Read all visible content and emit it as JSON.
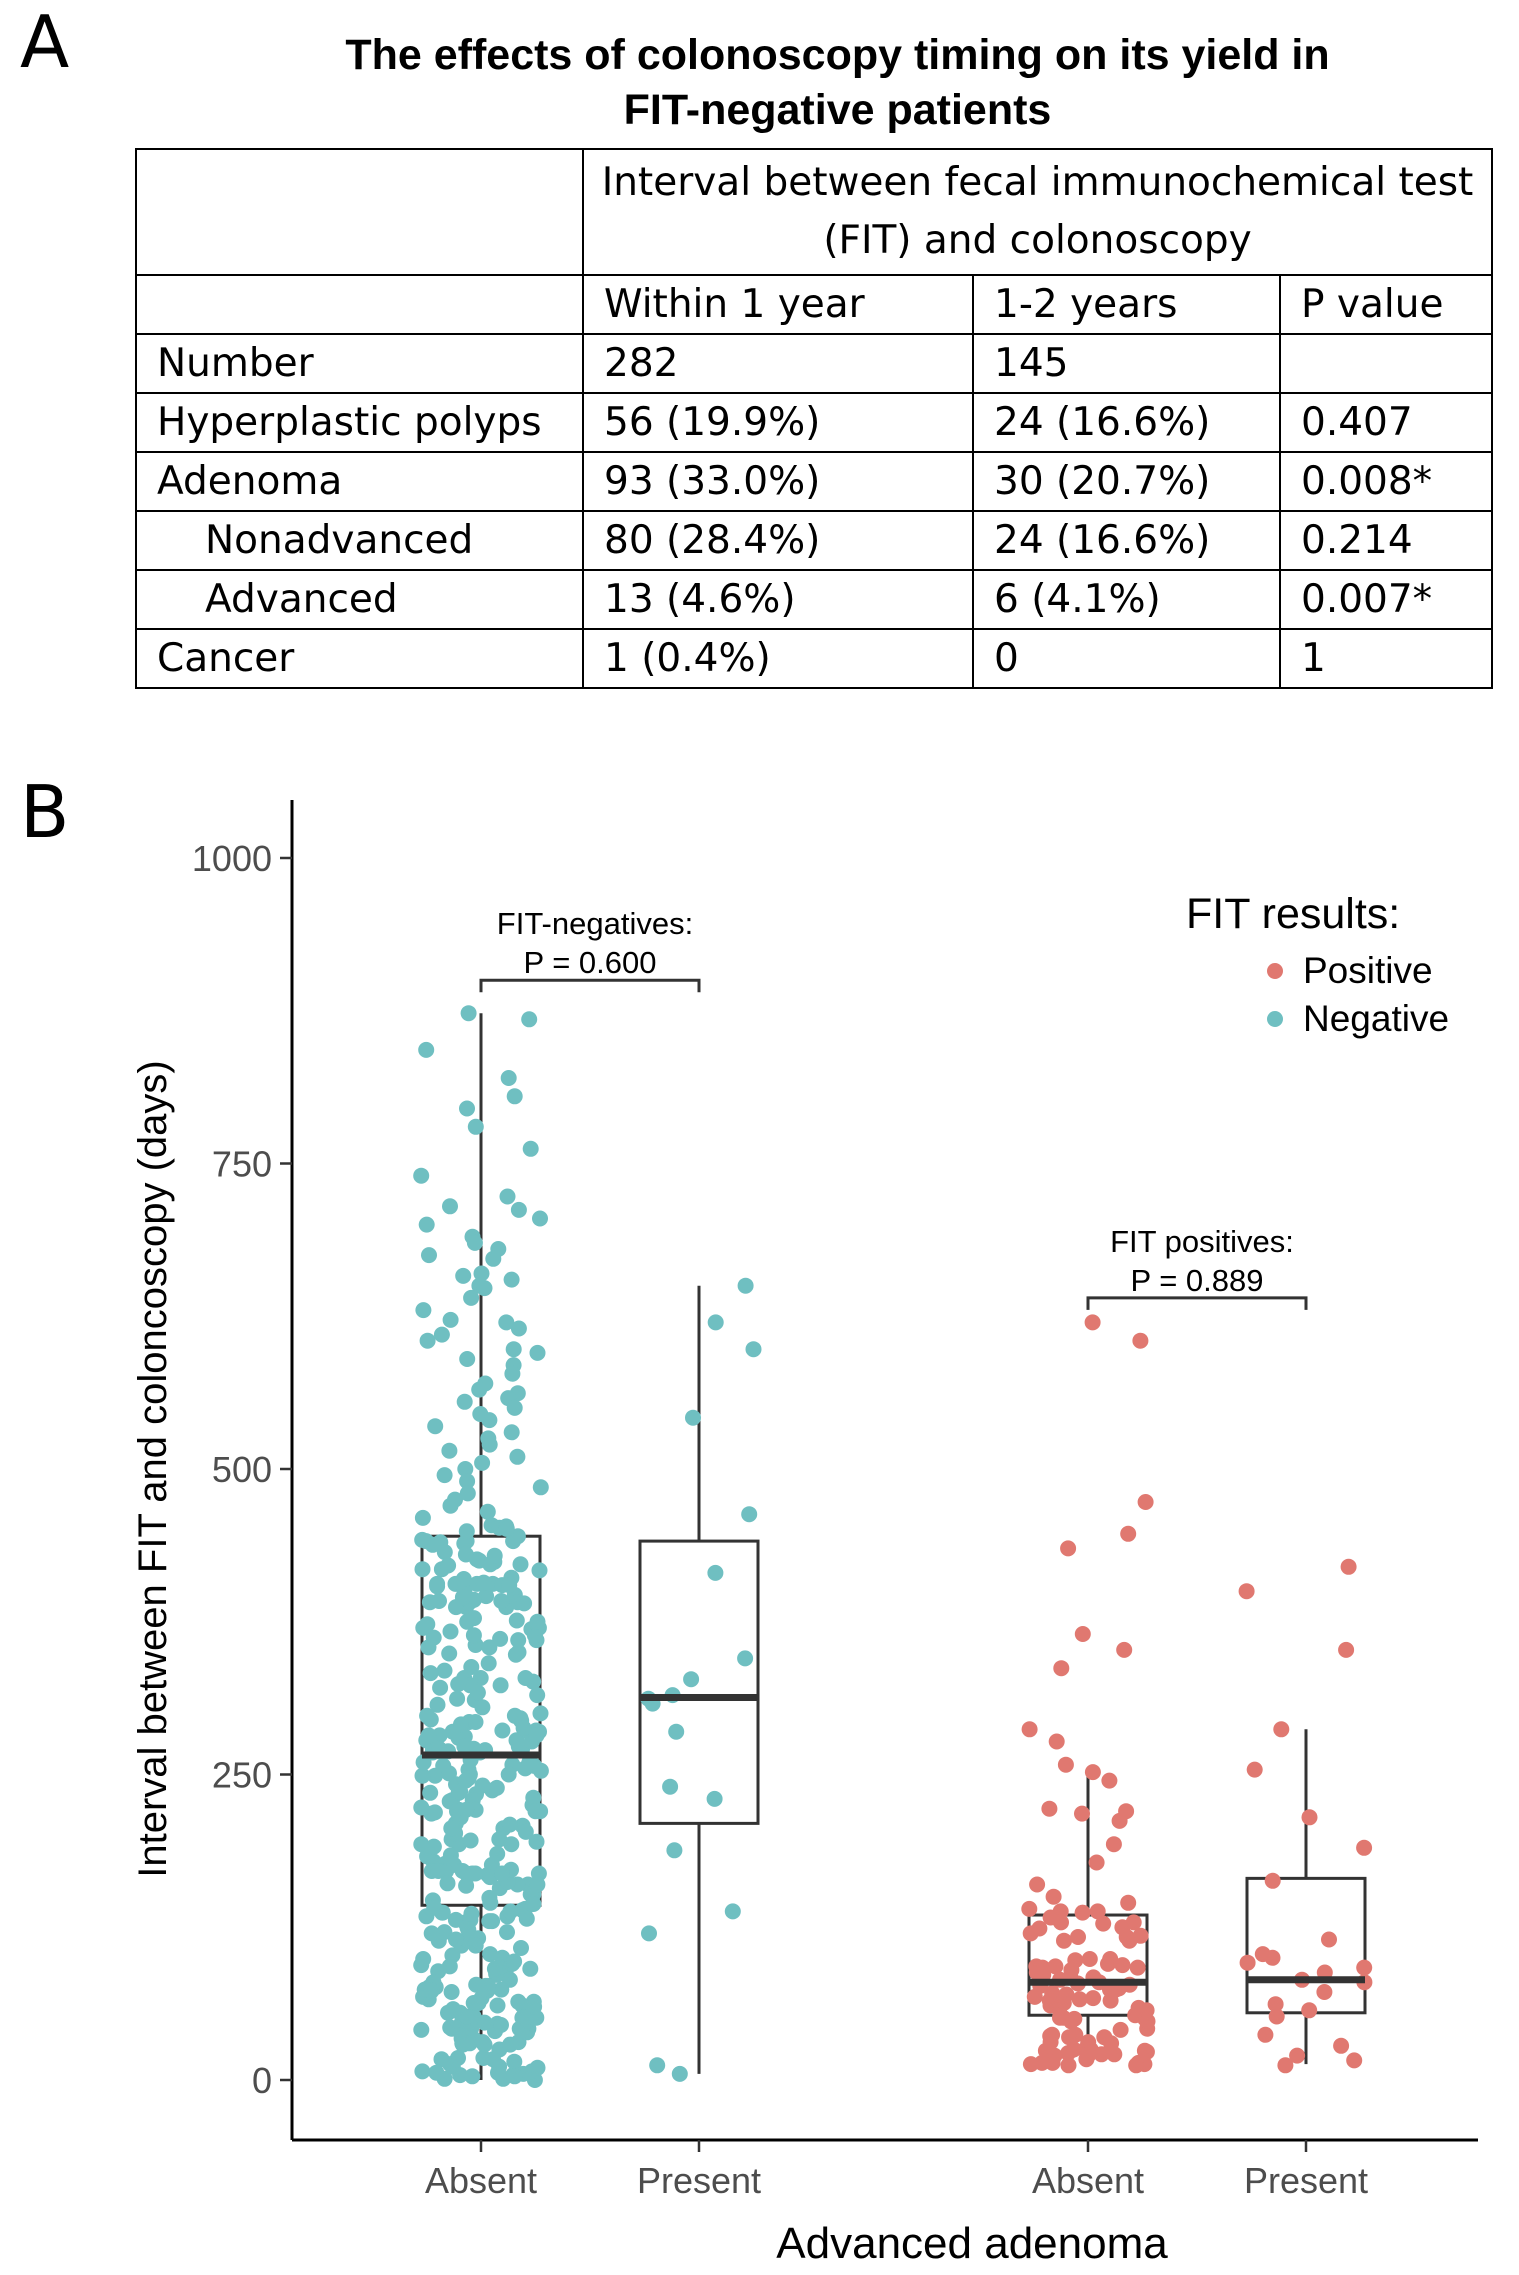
{
  "panels": {
    "a": "A",
    "b": "B"
  },
  "table": {
    "title_line1": "The effects of colonoscopy timing on its yield in",
    "title_line2": "FIT-negative patients",
    "span_header_line1": "Interval between fecal immunochemical test",
    "span_header_line2": "(FIT) and colonoscopy",
    "columns": [
      "Within 1 year",
      "1-2 years",
      "P value"
    ],
    "rows": [
      {
        "label": "Number",
        "within": "282",
        "between": "145",
        "p": ""
      },
      {
        "label": "Hyperplastic polyps",
        "within": "56 (19.9%)",
        "between": "24 (16.6%)",
        "p": "0.407"
      },
      {
        "label": "Adenoma",
        "within": "93 (33.0%)",
        "between": "30 (20.7%)",
        "p": "0.008*"
      },
      {
        "label": "Nonadvanced",
        "within": "80 (28.4%)",
        "between": "24 (16.6%)",
        "p": "0.214"
      },
      {
        "label": "Advanced",
        "within": "13 (4.6%)",
        "between": "6 (4.1%)",
        "p": "0.007*"
      },
      {
        "label": "Cancer",
        "within": "1 (0.4%)",
        "between": "0",
        "p": "1"
      }
    ]
  },
  "chart_data": {
    "type": "box-jitter",
    "ylabel": "Interval between FIT and coloncoscopy (days)",
    "xlabel": "Advanced adenoma",
    "ylim": [
      0,
      1000
    ],
    "yticks": [
      0,
      250,
      500,
      750,
      1000
    ],
    "legend": {
      "title": "FIT results:",
      "position": "top-right",
      "entries": [
        {
          "label": "Positive",
          "color": "#E07870"
        },
        {
          "label": "Negative",
          "color": "#6FBFC1"
        }
      ]
    },
    "groups": [
      {
        "category": "Absent",
        "fit": "Negative",
        "color": "#6FBFC1",
        "q1": 143,
        "median": 266,
        "q3": 445,
        "whisker_low": 0,
        "whisker_high": 873,
        "n_points": 390,
        "points_hi": [
          873,
          868,
          843,
          820,
          805,
          795,
          780,
          762,
          740,
          723,
          715,
          712,
          705,
          700,
          690,
          685,
          680,
          675,
          672,
          660,
          658,
          655,
          650,
          648,
          640,
          630,
          622,
          620,
          615,
          610,
          605,
          598,
          595,
          590,
          585,
          578,
          570,
          565,
          562,
          558,
          555,
          550,
          545,
          540,
          535,
          530,
          525,
          520,
          515,
          510,
          505,
          500,
          495,
          490,
          485,
          480,
          475,
          470,
          465,
          460
        ]
      },
      {
        "category": "Present",
        "fit": "Negative",
        "color": "#6FBFC1",
        "q1": 210,
        "median": 313,
        "q3": 441,
        "whisker_low": 5,
        "whisker_high": 650,
        "points": [
          650,
          620,
          598,
          542,
          463,
          415,
          345,
          328,
          315,
          312,
          308,
          285,
          240,
          230,
          188,
          138,
          120,
          12,
          5
        ]
      },
      {
        "category": "Absent",
        "fit": "Positive",
        "color": "#E07870",
        "q1": 53,
        "median": 80,
        "q3": 135,
        "whisker_low": 14,
        "whisker_high": 255,
        "n_points": 110,
        "points_hi": [
          620,
          605,
          473,
          447,
          435,
          365,
          352,
          337,
          287,
          277,
          258,
          252,
          245,
          222,
          220,
          218,
          212,
          193,
          178,
          160,
          150,
          145,
          140
        ]
      },
      {
        "category": "Present",
        "fit": "Positive",
        "color": "#E07870",
        "q1": 55,
        "median": 82,
        "q3": 165,
        "whisker_low": 13,
        "whisker_high": 287,
        "points": [
          420,
          400,
          352,
          287,
          254,
          215,
          190,
          163,
          115,
          103,
          100,
          96,
          92,
          88,
          82,
          80,
          72,
          62,
          57,
          52,
          37,
          28,
          20,
          16,
          12
        ]
      }
    ],
    "annotations": [
      {
        "text_line1": "FIT-negatives:",
        "text_line2": "P = 0.600",
        "between": [
          0,
          1
        ],
        "y": 900
      },
      {
        "text_line1": "FIT positives:",
        "text_line2": "P = 0.889",
        "between": [
          2,
          3
        ],
        "y": 640
      }
    ],
    "x_tick_labels": [
      "Absent",
      "Present",
      "Absent",
      "Present"
    ]
  }
}
